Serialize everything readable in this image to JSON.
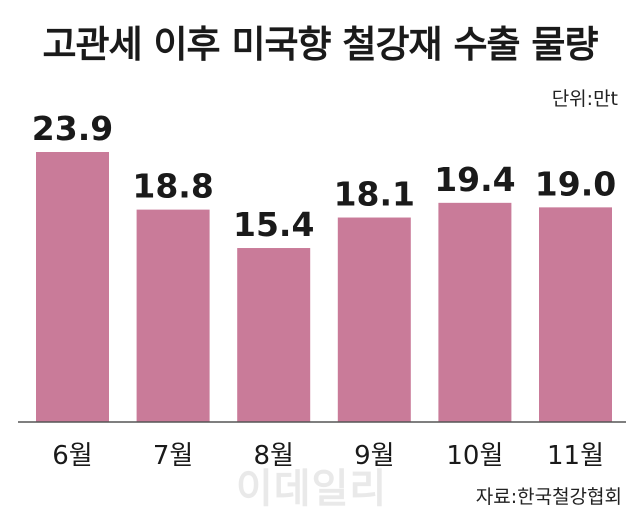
{
  "title": "고관세 이후 미국향 철강재 수출 물량",
  "unit_label": "단위:만t",
  "source": "자료:한국철강협회",
  "watermark": "이데일리",
  "colors": {
    "bar": "#c97b99",
    "axis": "#555555"
  },
  "chart_data": {
    "type": "bar",
    "title": "고관세 이후 미국향 철강재 수출 물량",
    "categories": [
      "6월",
      "7월",
      "8월",
      "9월",
      "10월",
      "11월"
    ],
    "values": [
      23.9,
      18.8,
      15.4,
      18.1,
      19.4,
      19.0
    ],
    "value_labels": [
      "23.9",
      "18.8",
      "15.4",
      "18.1",
      "19.4",
      "19.0"
    ],
    "unit": "만t",
    "ylim": [
      0,
      27
    ],
    "grid": false,
    "legend": "none"
  }
}
